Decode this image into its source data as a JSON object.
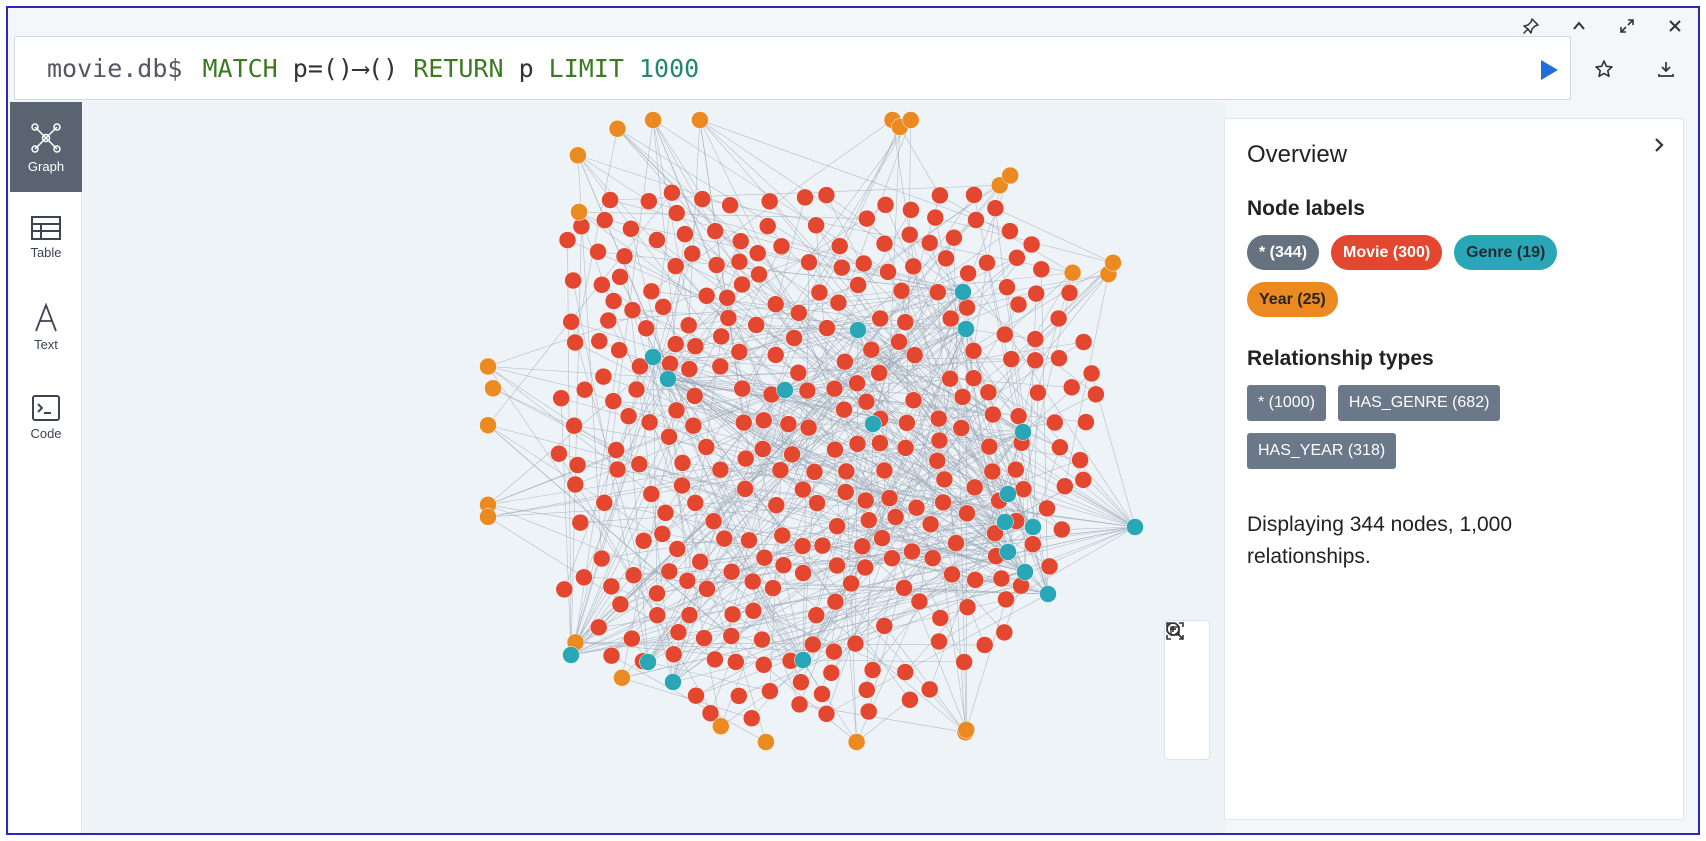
{
  "window_controls": [
    "pin-icon",
    "chevron-up-icon",
    "expand-icon",
    "close-icon"
  ],
  "query": {
    "prompt": "movie.db$",
    "tokens": [
      {
        "text": "MATCH",
        "kind": "kw"
      },
      {
        "text": " p=()⟶() ",
        "kind": "plain"
      },
      {
        "text": "RETURN",
        "kind": "kw"
      },
      {
        "text": " p ",
        "kind": "plain"
      },
      {
        "text": "LIMIT",
        "kind": "kw"
      },
      {
        "text": " 1000",
        "kind": "num"
      }
    ]
  },
  "sidebar": {
    "items": [
      {
        "label": "Graph",
        "icon": "graph-icon",
        "active": true
      },
      {
        "label": "Table",
        "icon": "table-icon",
        "active": false
      },
      {
        "label": "Text",
        "icon": "text-icon",
        "active": false
      },
      {
        "label": "Code",
        "icon": "code-icon",
        "active": false
      }
    ]
  },
  "colors": {
    "movie": "#e3472f",
    "genre": "#2aa7b6",
    "year": "#ea8a20",
    "edge": "#9aa6b5",
    "run": "#1e6fd9"
  },
  "overview": {
    "title": "Overview",
    "node_labels_heading": "Node labels",
    "node_labels": [
      {
        "label": "* (344)",
        "kind": "all"
      },
      {
        "label": "Movie (300)",
        "kind": "movie"
      },
      {
        "label": "Genre (19)",
        "kind": "genre"
      },
      {
        "label": "Year (25)",
        "kind": "year"
      }
    ],
    "relationship_heading": "Relationship types",
    "relationship_types": [
      {
        "label": "* (1000)"
      },
      {
        "label": "HAS_GENRE (682)"
      },
      {
        "label": "HAS_YEAR (318)"
      }
    ],
    "summary": "Displaying 344 nodes, 1,000 relationships."
  },
  "graph": {
    "node_counts": {
      "movie": 300,
      "genre": 19,
      "year": 25
    },
    "relationship_count": 1000
  }
}
